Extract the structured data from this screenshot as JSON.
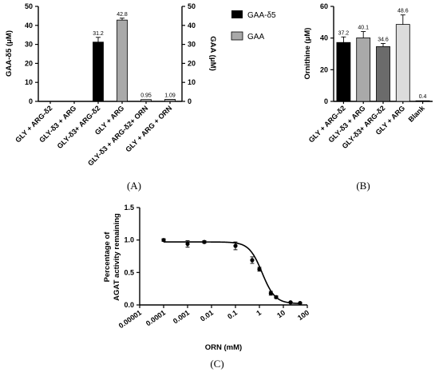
{
  "chart_data": [
    {
      "panel": "(A)",
      "type": "bar",
      "categories": [
        "GLY + ARG-δ2",
        "GLY-δ3 + ARG",
        "GLY-δ3+ ARG-δ2",
        "GLY + ARG",
        "GLY-δ3 + ARG-δ2+ ORN",
        "GLY + ARG + ORN"
      ],
      "series": [
        {
          "name": "GAA-δ5",
          "color": "#000000",
          "values": [
            0,
            0,
            31.2,
            0,
            0,
            0
          ],
          "errors": [
            0,
            0,
            2.5,
            0,
            0,
            0
          ]
        },
        {
          "name": "GAA",
          "color": "#a9a9a9",
          "values": [
            0,
            0,
            0,
            42.8,
            0.95,
            1.09
          ],
          "errors": [
            0,
            0,
            0,
            1.0,
            0,
            0
          ]
        }
      ],
      "data_labels": [
        "",
        "",
        "31.2",
        "42.8",
        "0.95",
        "1.09"
      ],
      "ylabel_left": "GAA-δ5 (μM)",
      "ylabel_right": "GAA (μM)",
      "ylim": [
        0,
        50
      ],
      "yticks": [
        0,
        10,
        20,
        30,
        40,
        50
      ],
      "legend": "right"
    },
    {
      "panel": "(B)",
      "type": "bar",
      "categories": [
        "GLY + ARG-δ2",
        "GLY-δ3 + ARG",
        "GLY-δ3+ ARG-δ2",
        "GLY + ARG",
        "Blank"
      ],
      "values": [
        37.2,
        40.1,
        34.6,
        48.6,
        0.4
      ],
      "errors": [
        3.5,
        4.0,
        2.0,
        6.0,
        0
      ],
      "colors": [
        "#000000",
        "#a9a9a9",
        "#6b6b6b",
        "#dcdcdc",
        "#ffffff"
      ],
      "data_labels": [
        "37.2",
        "40.1",
        "34.6",
        "48.6",
        "0.4"
      ],
      "ylabel": "Ornithine (μM)",
      "ylim": [
        0,
        60
      ],
      "yticks": [
        0,
        20,
        40,
        60
      ]
    },
    {
      "panel": "(C)",
      "type": "scatter",
      "xscale": "log",
      "x": [
        0.0001,
        0.001,
        0.005,
        0.1,
        0.5,
        1,
        3,
        5,
        20,
        50
      ],
      "y": [
        1.0,
        0.94,
        0.97,
        0.91,
        0.69,
        0.55,
        0.18,
        0.12,
        0.04,
        0.03
      ],
      "yerr": [
        0.02,
        0.05,
        0.02,
        0.06,
        0.05,
        0.03,
        0.03,
        0.02,
        0.01,
        0.01
      ],
      "fit": {
        "top": 0.97,
        "bottom": 0.02,
        "ic50": 1.3,
        "hill": 1.6
      },
      "xticks": [
        "0.00001",
        "0.0001",
        "0.001",
        "0.01",
        "0.1",
        "1",
        "10",
        "100"
      ],
      "xlim": [
        1e-05,
        100
      ],
      "ylim": [
        0,
        1.5
      ],
      "yticks": [
        "0.0",
        "0.5",
        "1.0",
        "1.5"
      ],
      "xlabel": "ORN (mM)",
      "ylabel_line1": "Percentage of",
      "ylabel_line2": "AGAT activity remaining"
    }
  ],
  "panel_labels": [
    "(A)",
    "(B)",
    "(C)"
  ]
}
